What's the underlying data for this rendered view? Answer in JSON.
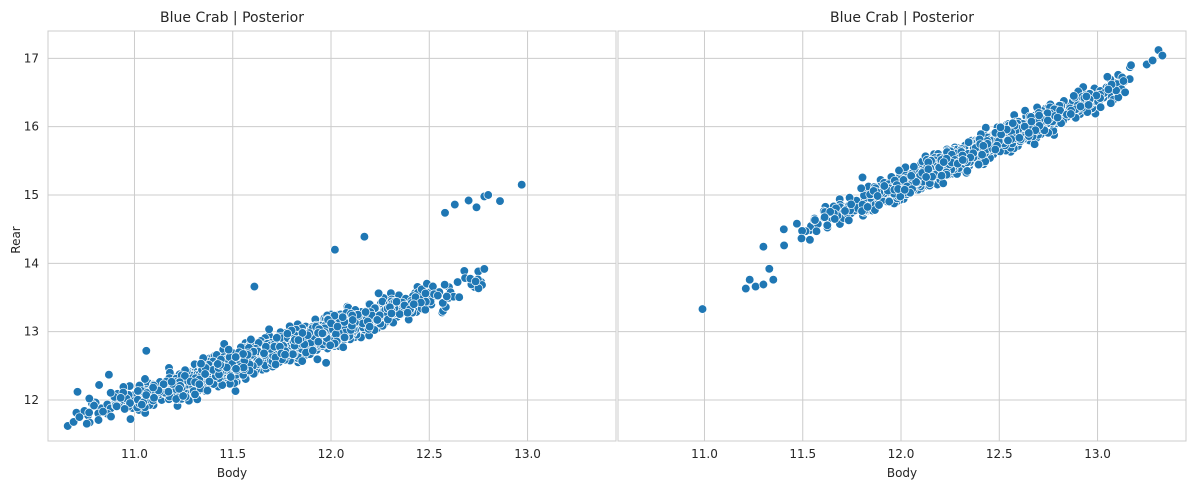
{
  "chart_data": [
    {
      "type": "scatter",
      "title": "Blue Crab | Posterior",
      "xlabel": "Body",
      "ylabel": "Rear",
      "xlim": [
        10.56,
        13.45
      ],
      "ylim": [
        11.4,
        17.4
      ],
      "xticks": [
        11.0,
        11.5,
        12.0,
        12.5,
        13.0
      ],
      "xtick_labels": [
        "11.0",
        "11.5",
        "12.0",
        "12.5",
        "13.0"
      ],
      "yticks": [
        12,
        13,
        14,
        15,
        16,
        17
      ],
      "ytick_labels": [
        "12",
        "13",
        "14",
        "15",
        "16",
        "17"
      ],
      "grid": true,
      "color": "#1f77b4",
      "trend": {
        "slope": 1.0,
        "intercept": 1.0,
        "spread": 0.11,
        "body_range": [
          10.68,
          12.86
        ],
        "body_center": 11.7,
        "body_sd": 0.38,
        "n_cloud": 1700
      },
      "points": [
        [
          10.66,
          11.62
        ],
        [
          10.69,
          11.68
        ],
        [
          10.72,
          11.75
        ],
        [
          10.71,
          12.12
        ],
        [
          10.77,
          12.02
        ],
        [
          10.82,
          12.22
        ],
        [
          10.84,
          11.83
        ],
        [
          10.87,
          12.37
        ],
        [
          10.95,
          11.87
        ],
        [
          11.06,
          12.72
        ],
        [
          11.61,
          13.66
        ],
        [
          12.02,
          14.2
        ],
        [
          12.17,
          14.39
        ],
        [
          12.58,
          14.74
        ],
        [
          12.63,
          14.86
        ],
        [
          12.7,
          14.92
        ],
        [
          12.74,
          14.82
        ],
        [
          12.78,
          14.98
        ],
        [
          12.8,
          15.0
        ],
        [
          12.86,
          14.91
        ],
        [
          12.97,
          15.15
        ]
      ]
    },
    {
      "type": "scatter",
      "title": "Blue Crab | Posterior",
      "xlabel": "Body",
      "ylabel": "",
      "xlim": [
        10.56,
        13.45
      ],
      "ylim": [
        11.4,
        17.4
      ],
      "xticks": [
        11.0,
        11.5,
        12.0,
        12.5,
        13.0
      ],
      "xtick_labels": [
        "11.0",
        "11.5",
        "12.0",
        "12.5",
        "13.0"
      ],
      "yticks": [
        12,
        13,
        14,
        15,
        16,
        17
      ],
      "ytick_labels": [],
      "grid": true,
      "color": "#1f77b4",
      "trend": {
        "slope": 1.3,
        "intercept": -0.46,
        "spread": 0.09,
        "body_range": [
          11.28,
          13.18
        ],
        "body_center": 12.35,
        "body_sd": 0.33,
        "n_cloud": 1700
      },
      "points": [
        [
          10.99,
          13.33
        ],
        [
          11.21,
          13.63
        ],
        [
          11.23,
          13.76
        ],
        [
          11.26,
          13.66
        ],
        [
          11.3,
          13.69
        ],
        [
          11.33,
          13.92
        ],
        [
          11.35,
          13.76
        ],
        [
          11.57,
          14.47
        ],
        [
          13.05,
          16.73
        ],
        [
          13.17,
          16.9
        ],
        [
          13.25,
          16.91
        ],
        [
          13.28,
          16.97
        ],
        [
          13.31,
          17.12
        ],
        [
          13.33,
          17.04
        ]
      ]
    }
  ]
}
